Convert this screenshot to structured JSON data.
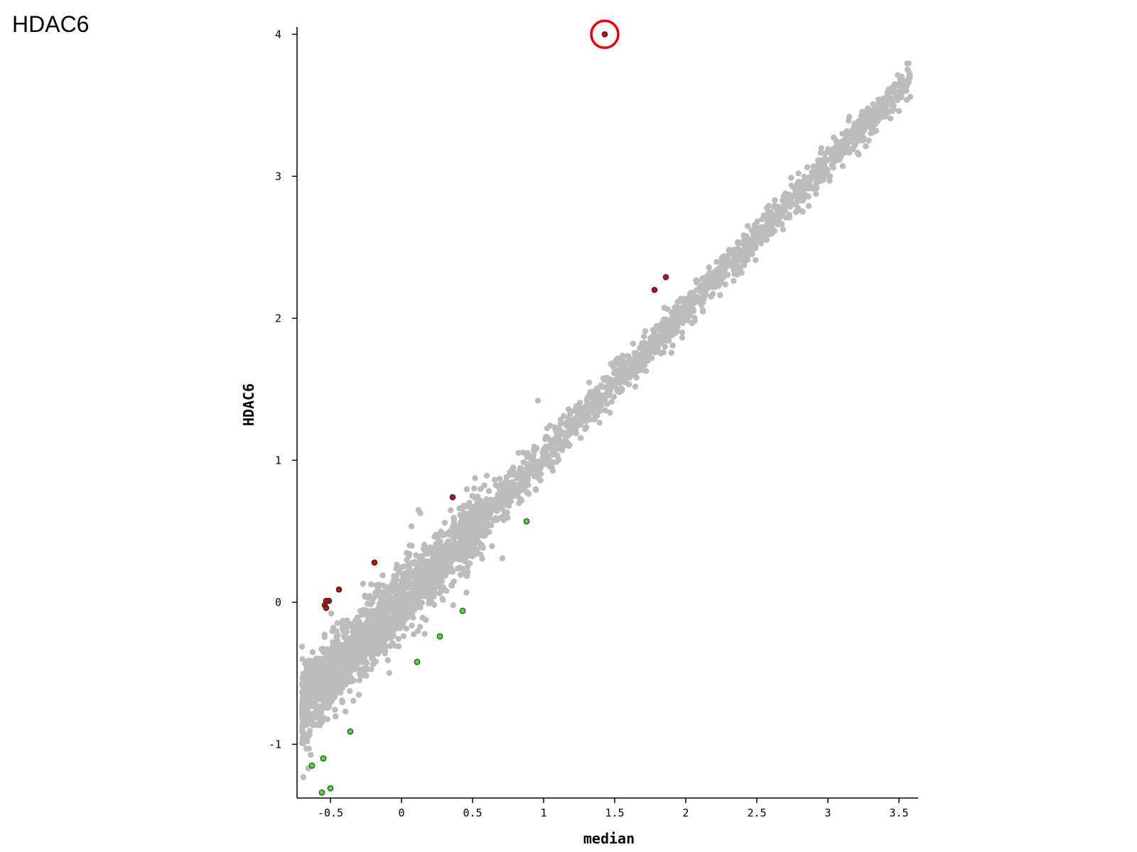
{
  "figure": {
    "label": "HDAC6"
  },
  "chart_data": {
    "type": "scatter",
    "title": "",
    "xlabel": "median",
    "ylabel": "HDAC6",
    "xlim": [
      -0.73,
      3.64
    ],
    "ylim": [
      -1.38,
      4.05
    ],
    "x_ticks": [
      -0.5,
      0,
      0.5,
      1,
      1.5,
      2,
      2.5,
      3,
      3.5
    ],
    "x_tick_labels": [
      "-0.5",
      "0",
      "0.5",
      "1",
      "1.5",
      "2",
      "2.5",
      "3",
      "3.5"
    ],
    "y_ticks": [
      -1,
      0,
      1,
      2,
      3,
      4
    ],
    "y_tick_labels": [
      "-1",
      "0",
      "1",
      "2",
      "3",
      "4"
    ],
    "grid": false,
    "legend": "none",
    "colors": {
      "background_points": "#bbbbbb",
      "up_points": "#b01515",
      "down_points": "#44dd33",
      "highlight_circle": "#e0000b",
      "axis": "#000000"
    },
    "background_cloud": {
      "description_free": true,
      "trend": {
        "slope": 1.03,
        "intercept": 0.0
      },
      "x_range": [
        -0.7,
        3.58
      ],
      "n_points": 2600
    },
    "series": [
      {
        "name": "",
        "color": "#b01515",
        "points": [
          {
            "x": 1.43,
            "y": 4.0
          },
          {
            "x": 1.86,
            "y": 2.29
          },
          {
            "x": 1.78,
            "y": 2.2
          },
          {
            "x": 0.36,
            "y": 0.74
          },
          {
            "x": -0.19,
            "y": 0.28
          },
          {
            "x": -0.44,
            "y": 0.09
          },
          {
            "x": -0.51,
            "y": 0.01
          },
          {
            "x": -0.53,
            "y": 0.01
          },
          {
            "x": -0.54,
            "y": -0.02
          },
          {
            "x": -0.53,
            "y": -0.04
          }
        ]
      },
      {
        "name": "",
        "color": "#44dd33",
        "points": [
          {
            "x": 0.88,
            "y": 0.57
          },
          {
            "x": 0.43,
            "y": -0.06
          },
          {
            "x": 0.27,
            "y": -0.24
          },
          {
            "x": 0.11,
            "y": -0.42
          },
          {
            "x": -0.36,
            "y": -0.91
          },
          {
            "x": -0.63,
            "y": -1.15
          },
          {
            "x": -0.55,
            "y": -1.1
          },
          {
            "x": -0.5,
            "y": -1.31
          },
          {
            "x": -0.56,
            "y": -1.34
          }
        ]
      }
    ],
    "highlighted_point": {
      "x": 1.43,
      "y": 4.0
    },
    "background_extra_points": [
      {
        "x": 3.58,
        "y": 3.56
      },
      {
        "x": 3.45,
        "y": 3.55
      },
      {
        "x": 3.5,
        "y": 3.46
      },
      {
        "x": 3.33,
        "y": 3.4
      },
      {
        "x": 3.25,
        "y": 3.39
      },
      {
        "x": 2.93,
        "y": 3.04
      },
      {
        "x": 0.96,
        "y": 1.42
      },
      {
        "x": 0.12,
        "y": 0.65
      },
      {
        "x": 0.71,
        "y": 0.31
      },
      {
        "x": -0.6,
        "y": -0.86
      }
    ]
  }
}
